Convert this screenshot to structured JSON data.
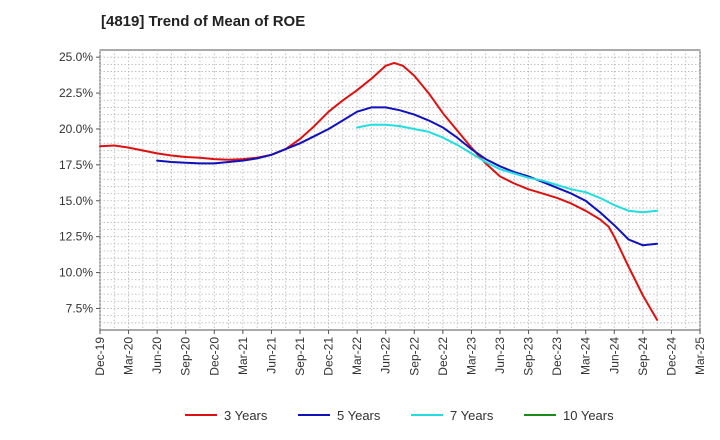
{
  "chart_data": {
    "type": "line",
    "title": "[4819]  Trend of Mean of ROE",
    "xlabel": "",
    "ylabel": "",
    "ylim": [
      6.0,
      25.5
    ],
    "y_ticks": [
      {
        "value": 25.0,
        "label": "25.0%"
      },
      {
        "value": 22.5,
        "label": "22.5%"
      },
      {
        "value": 20.0,
        "label": "20.0%"
      },
      {
        "value": 17.5,
        "label": "17.5%"
      },
      {
        "value": 15.0,
        "label": "15.0%"
      },
      {
        "value": 12.5,
        "label": "12.5%"
      },
      {
        "value": 10.0,
        "label": "10.0%"
      },
      {
        "value": 7.5,
        "label": "7.5%"
      }
    ],
    "x_ticks": [
      "Dec-19",
      "Mar-20",
      "Jun-20",
      "Sep-20",
      "Dec-20",
      "Mar-21",
      "Jun-21",
      "Sep-21",
      "Dec-21",
      "Mar-22",
      "Jun-22",
      "Sep-22",
      "Dec-22",
      "Mar-23",
      "Jun-23",
      "Sep-23",
      "Dec-23",
      "Mar-24",
      "Jun-24",
      "Sep-24",
      "Dec-24",
      "Mar-25"
    ],
    "grid": true,
    "legend_position": "bottom",
    "series": [
      {
        "name": "3 Years",
        "color": "#dd1111",
        "points": [
          [
            0,
            18.8
          ],
          [
            0.5,
            18.85
          ],
          [
            1,
            18.7
          ],
          [
            1.5,
            18.5
          ],
          [
            2,
            18.3
          ],
          [
            2.5,
            18.15
          ],
          [
            3,
            18.05
          ],
          [
            3.5,
            18.0
          ],
          [
            4,
            17.9
          ],
          [
            4.5,
            17.85
          ],
          [
            5,
            17.9
          ],
          [
            5.5,
            18.0
          ],
          [
            6,
            18.2
          ],
          [
            6.5,
            18.6
          ],
          [
            7,
            19.3
          ],
          [
            7.5,
            20.2
          ],
          [
            8,
            21.2
          ],
          [
            8.5,
            22.0
          ],
          [
            9,
            22.7
          ],
          [
            9.5,
            23.5
          ],
          [
            10,
            24.4
          ],
          [
            10.3,
            24.6
          ],
          [
            10.6,
            24.4
          ],
          [
            11,
            23.7
          ],
          [
            11.5,
            22.5
          ],
          [
            12,
            21.1
          ],
          [
            12.5,
            19.9
          ],
          [
            13,
            18.7
          ],
          [
            13.5,
            17.6
          ],
          [
            14,
            16.7
          ],
          [
            14.5,
            16.2
          ],
          [
            15,
            15.8
          ],
          [
            15.5,
            15.5
          ],
          [
            16,
            15.2
          ],
          [
            16.5,
            14.8
          ],
          [
            17,
            14.3
          ],
          [
            17.5,
            13.7
          ],
          [
            17.8,
            13.2
          ],
          [
            18,
            12.5
          ],
          [
            18.5,
            10.4
          ],
          [
            19,
            8.4
          ],
          [
            19.5,
            6.7
          ]
        ]
      },
      {
        "name": "5 Years",
        "color": "#1111bb",
        "points": [
          [
            2,
            17.8
          ],
          [
            2.5,
            17.7
          ],
          [
            3,
            17.65
          ],
          [
            3.5,
            17.6
          ],
          [
            4,
            17.6
          ],
          [
            4.5,
            17.7
          ],
          [
            5,
            17.8
          ],
          [
            5.5,
            17.95
          ],
          [
            6,
            18.2
          ],
          [
            6.5,
            18.6
          ],
          [
            7,
            19.0
          ],
          [
            7.5,
            19.5
          ],
          [
            8,
            20.0
          ],
          [
            8.5,
            20.6
          ],
          [
            9,
            21.2
          ],
          [
            9.5,
            21.5
          ],
          [
            10,
            21.5
          ],
          [
            10.5,
            21.3
          ],
          [
            11,
            21.0
          ],
          [
            11.5,
            20.6
          ],
          [
            12,
            20.1
          ],
          [
            12.5,
            19.4
          ],
          [
            13,
            18.6
          ],
          [
            13.5,
            17.9
          ],
          [
            14,
            17.4
          ],
          [
            14.5,
            17.0
          ],
          [
            15,
            16.7
          ],
          [
            15.5,
            16.3
          ],
          [
            16,
            15.9
          ],
          [
            16.5,
            15.5
          ],
          [
            17,
            15.0
          ],
          [
            17.5,
            14.2
          ],
          [
            18,
            13.3
          ],
          [
            18.5,
            12.3
          ],
          [
            19,
            11.9
          ],
          [
            19.5,
            12.0
          ]
        ]
      },
      {
        "name": "7 Years",
        "color": "#22dddd",
        "points": [
          [
            9,
            20.1
          ],
          [
            9.5,
            20.3
          ],
          [
            10,
            20.3
          ],
          [
            10.5,
            20.2
          ],
          [
            11,
            20.0
          ],
          [
            11.5,
            19.8
          ],
          [
            12,
            19.4
          ],
          [
            12.5,
            18.9
          ],
          [
            13,
            18.3
          ],
          [
            13.5,
            17.7
          ],
          [
            14,
            17.2
          ],
          [
            14.5,
            16.9
          ],
          [
            15,
            16.6
          ],
          [
            15.5,
            16.4
          ],
          [
            16,
            16.1
          ],
          [
            16.5,
            15.8
          ],
          [
            17,
            15.6
          ],
          [
            17.5,
            15.2
          ],
          [
            18,
            14.7
          ],
          [
            18.5,
            14.3
          ],
          [
            19,
            14.2
          ],
          [
            19.5,
            14.3
          ]
        ]
      },
      {
        "name": "10 Years",
        "color": "#1a8a1a",
        "points": []
      }
    ]
  }
}
